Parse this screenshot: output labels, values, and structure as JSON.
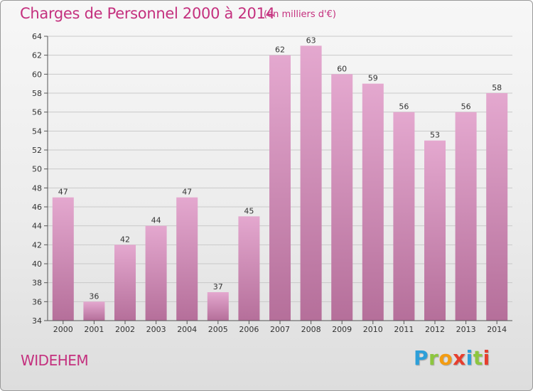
{
  "header": {
    "title": "Charges de Personnel 2000 à 2014",
    "subtitle": "(en milliers d'€)"
  },
  "footer": {
    "location": "WIDEHEM",
    "logo_text": "Proxiti",
    "logo_colors": [
      "#2d9fd9",
      "#8dc63f",
      "#f39c12",
      "#e63e2e",
      "#2d9fd9",
      "#8dc63f",
      "#e63e2e"
    ]
  },
  "colors": {
    "title": "#c4307e",
    "bar_top": "#e4a8cf",
    "bar_bottom": "#b56f9a",
    "grid": "#c9c9c9",
    "axis": "#555555"
  },
  "chart_data": {
    "type": "bar",
    "categories": [
      "2000",
      "2001",
      "2002",
      "2003",
      "2004",
      "2005",
      "2006",
      "2007",
      "2008",
      "2009",
      "2010",
      "2011",
      "2012",
      "2013",
      "2014"
    ],
    "values": [
      47,
      36,
      42,
      44,
      47,
      37,
      45,
      62,
      63,
      60,
      59,
      56,
      53,
      56,
      58
    ],
    "ylim": [
      34,
      64
    ],
    "yticks": [
      34,
      36,
      38,
      40,
      42,
      44,
      46,
      48,
      50,
      52,
      54,
      56,
      58,
      60,
      62,
      64
    ],
    "grid": true,
    "xlabel": "",
    "ylabel": ""
  }
}
